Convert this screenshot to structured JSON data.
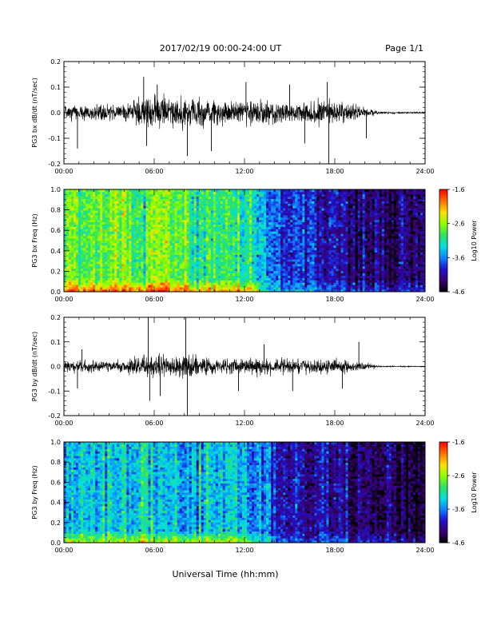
{
  "header": {
    "date_title": "2017/02/19  00:00-24:00 UT",
    "page_label": "Page 1/1"
  },
  "xaxis": {
    "label": "Universal Time (hh:mm)",
    "range_hours": [
      0,
      24
    ],
    "tick_hours": [
      0,
      6,
      12,
      18,
      24
    ],
    "tick_labels": [
      "00:00",
      "06:00",
      "12:00",
      "18:00",
      "24:00"
    ]
  },
  "colorbar": {
    "label": "Log10 Power",
    "range": [
      -4.6,
      -1.6
    ],
    "tick_values": [
      -1.6,
      -2.6,
      -3.6,
      -4.6
    ],
    "tick_labels": [
      "-1.6",
      "-2.6",
      "-3.6",
      "-4.6"
    ],
    "colors": [
      "#000000",
      "#3a0070",
      "#2010c8",
      "#1080ff",
      "#00e0e0",
      "#30e060",
      "#90ff00",
      "#ffe000",
      "#ff7000",
      "#ff0000"
    ]
  },
  "chart_data": [
    {
      "type": "line",
      "panel": "bx-time-series",
      "ylabel": "PG3 bx dB/dt (nT/sec)",
      "ylim": [
        -0.2,
        0.2
      ],
      "yticks": [
        0.2,
        0.1,
        0.0,
        -0.1,
        -0.2
      ],
      "ytick_labels": [
        "0.2",
        "0.1",
        "0.0",
        "-0.1",
        "-0.2"
      ],
      "envelope": {
        "hours": [
          0,
          2,
          4,
          5,
          6,
          7,
          8,
          9,
          10,
          12,
          14,
          16,
          17,
          18,
          19,
          20,
          21,
          22,
          24
        ],
        "amplitude": [
          0.05,
          0.05,
          0.055,
          0.09,
          0.1,
          0.09,
          0.1,
          0.09,
          0.08,
          0.075,
          0.07,
          0.075,
          0.07,
          0.08,
          0.055,
          0.035,
          0.008,
          0.006,
          0.005
        ]
      },
      "spikes": [
        [
          0.9,
          -0.14
        ],
        [
          5.3,
          0.14
        ],
        [
          5.5,
          -0.13
        ],
        [
          6.2,
          0.11
        ],
        [
          8.2,
          -0.17
        ],
        [
          9.8,
          -0.15
        ],
        [
          12.1,
          0.12
        ],
        [
          15.0,
          0.11
        ],
        [
          16.0,
          -0.12
        ],
        [
          17.5,
          0.12
        ],
        [
          17.6,
          -0.2
        ],
        [
          20.1,
          -0.1
        ]
      ],
      "color": "#000000"
    },
    {
      "type": "heatmap",
      "panel": "bx-spectrogram",
      "ylabel": "PG3 bx Freq (Hz)",
      "ylim": [
        0.0,
        1.0
      ],
      "yticks": [
        1.0,
        0.8,
        0.6,
        0.4,
        0.2,
        0.0
      ],
      "ytick_labels": [
        "1.0",
        "0.8",
        "0.6",
        "0.4",
        "0.2",
        "0.0"
      ],
      "zlim": [
        -4.6,
        -1.6
      ],
      "base_power_by_hour": {
        "hours": [
          0,
          4,
          8,
          11,
          13,
          14,
          16,
          18,
          20,
          22,
          24
        ],
        "power": [
          -2.8,
          -2.75,
          -2.85,
          -3.0,
          -3.3,
          -3.7,
          -3.9,
          -4.1,
          -4.2,
          -4.35,
          -4.3
        ]
      },
      "low_freq_enhancement": -1.0
    },
    {
      "type": "line",
      "panel": "by-time-series",
      "ylabel": "PG3 by dB/dt (nT/sec)",
      "ylim": [
        -0.2,
        0.2
      ],
      "yticks": [
        0.2,
        0.1,
        0.0,
        -0.1,
        -0.2
      ],
      "ytick_labels": [
        "0.2",
        "0.1",
        "0.0",
        "-0.1",
        "-0.2"
      ],
      "envelope": {
        "hours": [
          0,
          2,
          4,
          5,
          6,
          7,
          8,
          9,
          10,
          12,
          14,
          16,
          17,
          18,
          19,
          20,
          21,
          22,
          24
        ],
        "amplitude": [
          0.035,
          0.035,
          0.04,
          0.06,
          0.08,
          0.06,
          0.09,
          0.06,
          0.05,
          0.05,
          0.05,
          0.05,
          0.045,
          0.05,
          0.035,
          0.03,
          0.004,
          0.003,
          0.003
        ]
      },
      "spikes": [
        [
          0.9,
          -0.09
        ],
        [
          1.2,
          0.07
        ],
        [
          5.6,
          0.2
        ],
        [
          5.7,
          -0.14
        ],
        [
          6.4,
          -0.12
        ],
        [
          8.1,
          0.2
        ],
        [
          8.2,
          -0.2
        ],
        [
          11.6,
          -0.1
        ],
        [
          13.3,
          0.09
        ],
        [
          15.2,
          -0.1
        ],
        [
          19.6,
          0.1
        ],
        [
          18.5,
          -0.09
        ]
      ],
      "color": "#000000"
    },
    {
      "type": "heatmap",
      "panel": "by-spectrogram",
      "ylabel": "PG3 by Freq (Hz)",
      "ylim": [
        0.0,
        1.0
      ],
      "yticks": [
        1.0,
        0.8,
        0.6,
        0.4,
        0.2,
        0.0
      ],
      "ytick_labels": [
        "1.0",
        "0.8",
        "0.6",
        "0.4",
        "0.2",
        "0.0"
      ],
      "zlim": [
        -4.6,
        -1.6
      ],
      "base_power_by_hour": {
        "hours": [
          0,
          4,
          8,
          11,
          13,
          14,
          16,
          18,
          20,
          22,
          24
        ],
        "power": [
          -3.35,
          -3.3,
          -3.35,
          -3.4,
          -3.6,
          -3.85,
          -4.0,
          -4.2,
          -4.3,
          -4.45,
          -4.4
        ]
      },
      "low_freq_enhancement": -0.9
    }
  ]
}
